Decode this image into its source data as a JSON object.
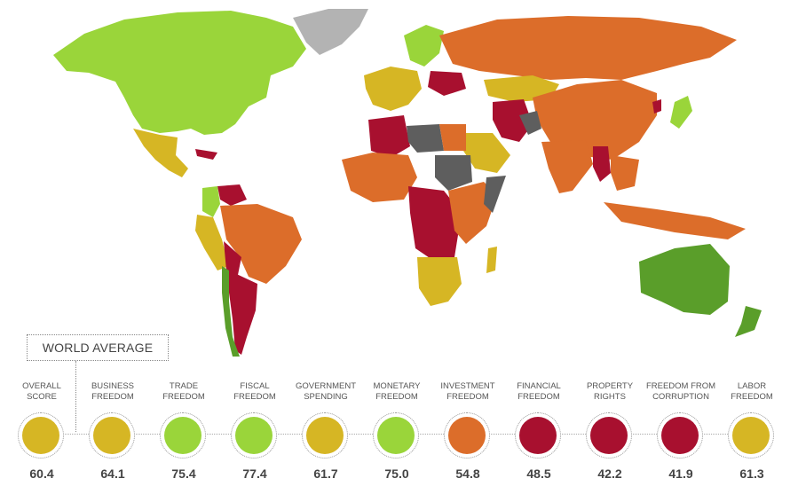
{
  "legend_title": "WORLD AVERAGE",
  "colors": {
    "free": "#5a9e2a",
    "mostly_free": "#9ad53a",
    "moderately_free": "#d6b624",
    "mostly_unfree": "#dc6d2a",
    "repressed": "#a8102f",
    "not_graded": "#5e5e5e",
    "no_data": "#b3b3b3"
  },
  "indicators": [
    {
      "label_line1": "OVERALL",
      "label_line2": "SCORE",
      "value": "60.4",
      "color": "#d6b624"
    },
    {
      "label_line1": "BUSINESS",
      "label_line2": "FREEDOM",
      "value": "64.1",
      "color": "#d6b624"
    },
    {
      "label_line1": "TRADE",
      "label_line2": "FREEDOM",
      "value": "75.4",
      "color": "#9ad53a"
    },
    {
      "label_line1": "FISCAL",
      "label_line2": "FREEDOM",
      "value": "77.4",
      "color": "#9ad53a"
    },
    {
      "label_line1": "GOVERNMENT",
      "label_line2": "SPENDING",
      "value": "61.7",
      "color": "#d6b624"
    },
    {
      "label_line1": "MONETARY",
      "label_line2": "FREEDOM",
      "value": "75.0",
      "color": "#9ad53a"
    },
    {
      "label_line1": "INVESTMENT",
      "label_line2": "FREEDOM",
      "value": "54.8",
      "color": "#dc6d2a"
    },
    {
      "label_line1": "FINANCIAL",
      "label_line2": "FREEDOM",
      "value": "48.5",
      "color": "#a8102f"
    },
    {
      "label_line1": "PROPERTY",
      "label_line2": "RIGHTS",
      "value": "42.2",
      "color": "#a8102f"
    },
    {
      "label_line1": "FREEDOM FROM",
      "label_line2": "CORRUPTION",
      "value": "41.9",
      "color": "#a8102f"
    },
    {
      "label_line1": "LABOR",
      "label_line2": "FREEDOM",
      "value": "61.3",
      "color": "#d6b624"
    }
  ]
}
